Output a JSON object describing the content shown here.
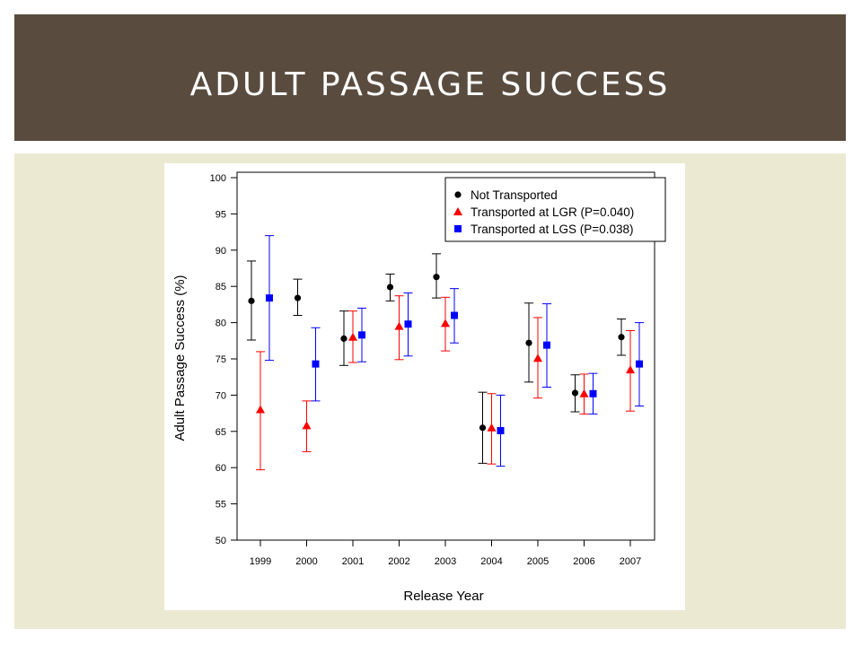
{
  "slide": {
    "title": "ADULT PASSAGE SUCCESS",
    "colors": {
      "banner": "#594c3f",
      "content_background": "#ebe9d2",
      "title_text": "#ffffff"
    }
  },
  "chart_data": {
    "type": "scatter",
    "subtype": "points with error bars",
    "xlabel": "Release Year",
    "ylabel": "Adult Passage Success (%)",
    "ylim": [
      50,
      100
    ],
    "yticks": [
      50,
      55,
      60,
      65,
      70,
      75,
      80,
      85,
      90,
      95,
      100
    ],
    "categories": [
      "1999",
      "2000",
      "2001",
      "2002",
      "2003",
      "2004",
      "2005",
      "2006",
      "2007"
    ],
    "grid": false,
    "legend_position": "top-right",
    "series": [
      {
        "name": "Not Transported",
        "color": "#000000",
        "marker": "circle",
        "values": [
          83.0,
          83.4,
          77.8,
          84.9,
          86.3,
          65.5,
          77.2,
          70.3,
          78.0
        ],
        "lower": [
          77.6,
          81.0,
          74.1,
          83.0,
          83.4,
          60.6,
          71.8,
          67.7,
          75.5
        ],
        "upper": [
          88.5,
          86.0,
          81.6,
          86.7,
          89.5,
          70.4,
          82.7,
          72.8,
          80.5
        ]
      },
      {
        "name": "Transported at LGR (P=0.040)",
        "color": "#ff0000",
        "marker": "triangle",
        "values": [
          68.0,
          65.8,
          78.0,
          79.5,
          79.9,
          65.5,
          75.1,
          70.2,
          73.5
        ],
        "lower": [
          59.7,
          62.2,
          74.5,
          74.9,
          76.1,
          60.5,
          69.6,
          67.4,
          67.8
        ],
        "upper": [
          76.0,
          69.2,
          81.6,
          83.7,
          83.5,
          70.2,
          80.7,
          72.9,
          78.9
        ]
      },
      {
        "name": "Transported at LGS (P=0.038)",
        "color": "#0000ff",
        "marker": "square",
        "values": [
          83.4,
          74.3,
          78.3,
          79.8,
          81.0,
          65.1,
          76.9,
          70.2,
          74.3
        ],
        "lower": [
          74.8,
          69.2,
          74.6,
          75.4,
          77.2,
          60.2,
          71.1,
          67.4,
          68.5
        ],
        "upper": [
          92.0,
          79.3,
          82.0,
          84.1,
          84.7,
          70.0,
          82.6,
          73.0,
          80.0
        ]
      }
    ]
  }
}
